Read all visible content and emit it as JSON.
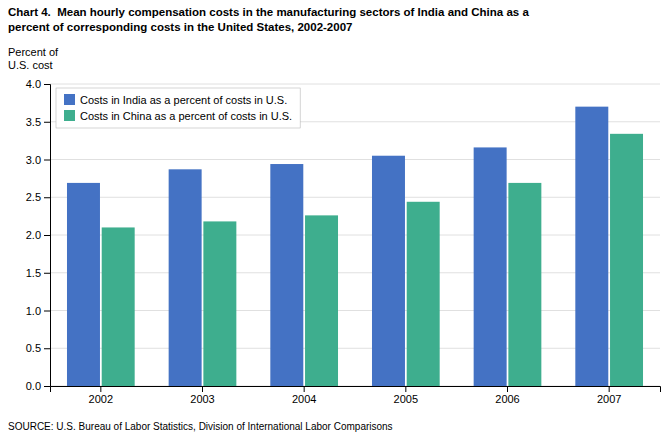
{
  "chart_data": {
    "type": "bar",
    "title": "Chart 4.  Mean hourly compensation costs in the manufacturing sectors of India and China as a\npercent of corresponding costs in the United States, 2002-2007",
    "ylabel": "Percent of\nU.S. cost",
    "annotations": [
      "SOURCE: U.S. Bureau of Labor Statistics, Division of International Labor Comparisons"
    ],
    "categories": [
      "2002",
      "2003",
      "2004",
      "2005",
      "2006",
      "2007"
    ],
    "series": [
      {
        "name": "Costs in India as a percent of costs in U.S.",
        "color": "#4472C4",
        "values": [
          2.69,
          2.87,
          2.94,
          3.05,
          3.16,
          3.7
        ]
      },
      {
        "name": "Costs in China as a percent of costs in U.S.",
        "color": "#3EAE8E",
        "values": [
          2.1,
          2.18,
          2.26,
          2.44,
          2.69,
          3.34
        ]
      }
    ],
    "ylim": [
      0,
      4.0
    ],
    "yticks": [
      {
        "value": 0.0,
        "label": "0.0"
      },
      0.5,
      {
        "value": 1.0,
        "label": "1.0"
      },
      1.5,
      {
        "value": 2.0,
        "label": "2.0"
      },
      2.5,
      {
        "value": 3.0,
        "label": "3.0"
      },
      3.5,
      {
        "value": 4.0,
        "label": "4.0"
      }
    ],
    "grid": true,
    "legend": "upper left"
  }
}
